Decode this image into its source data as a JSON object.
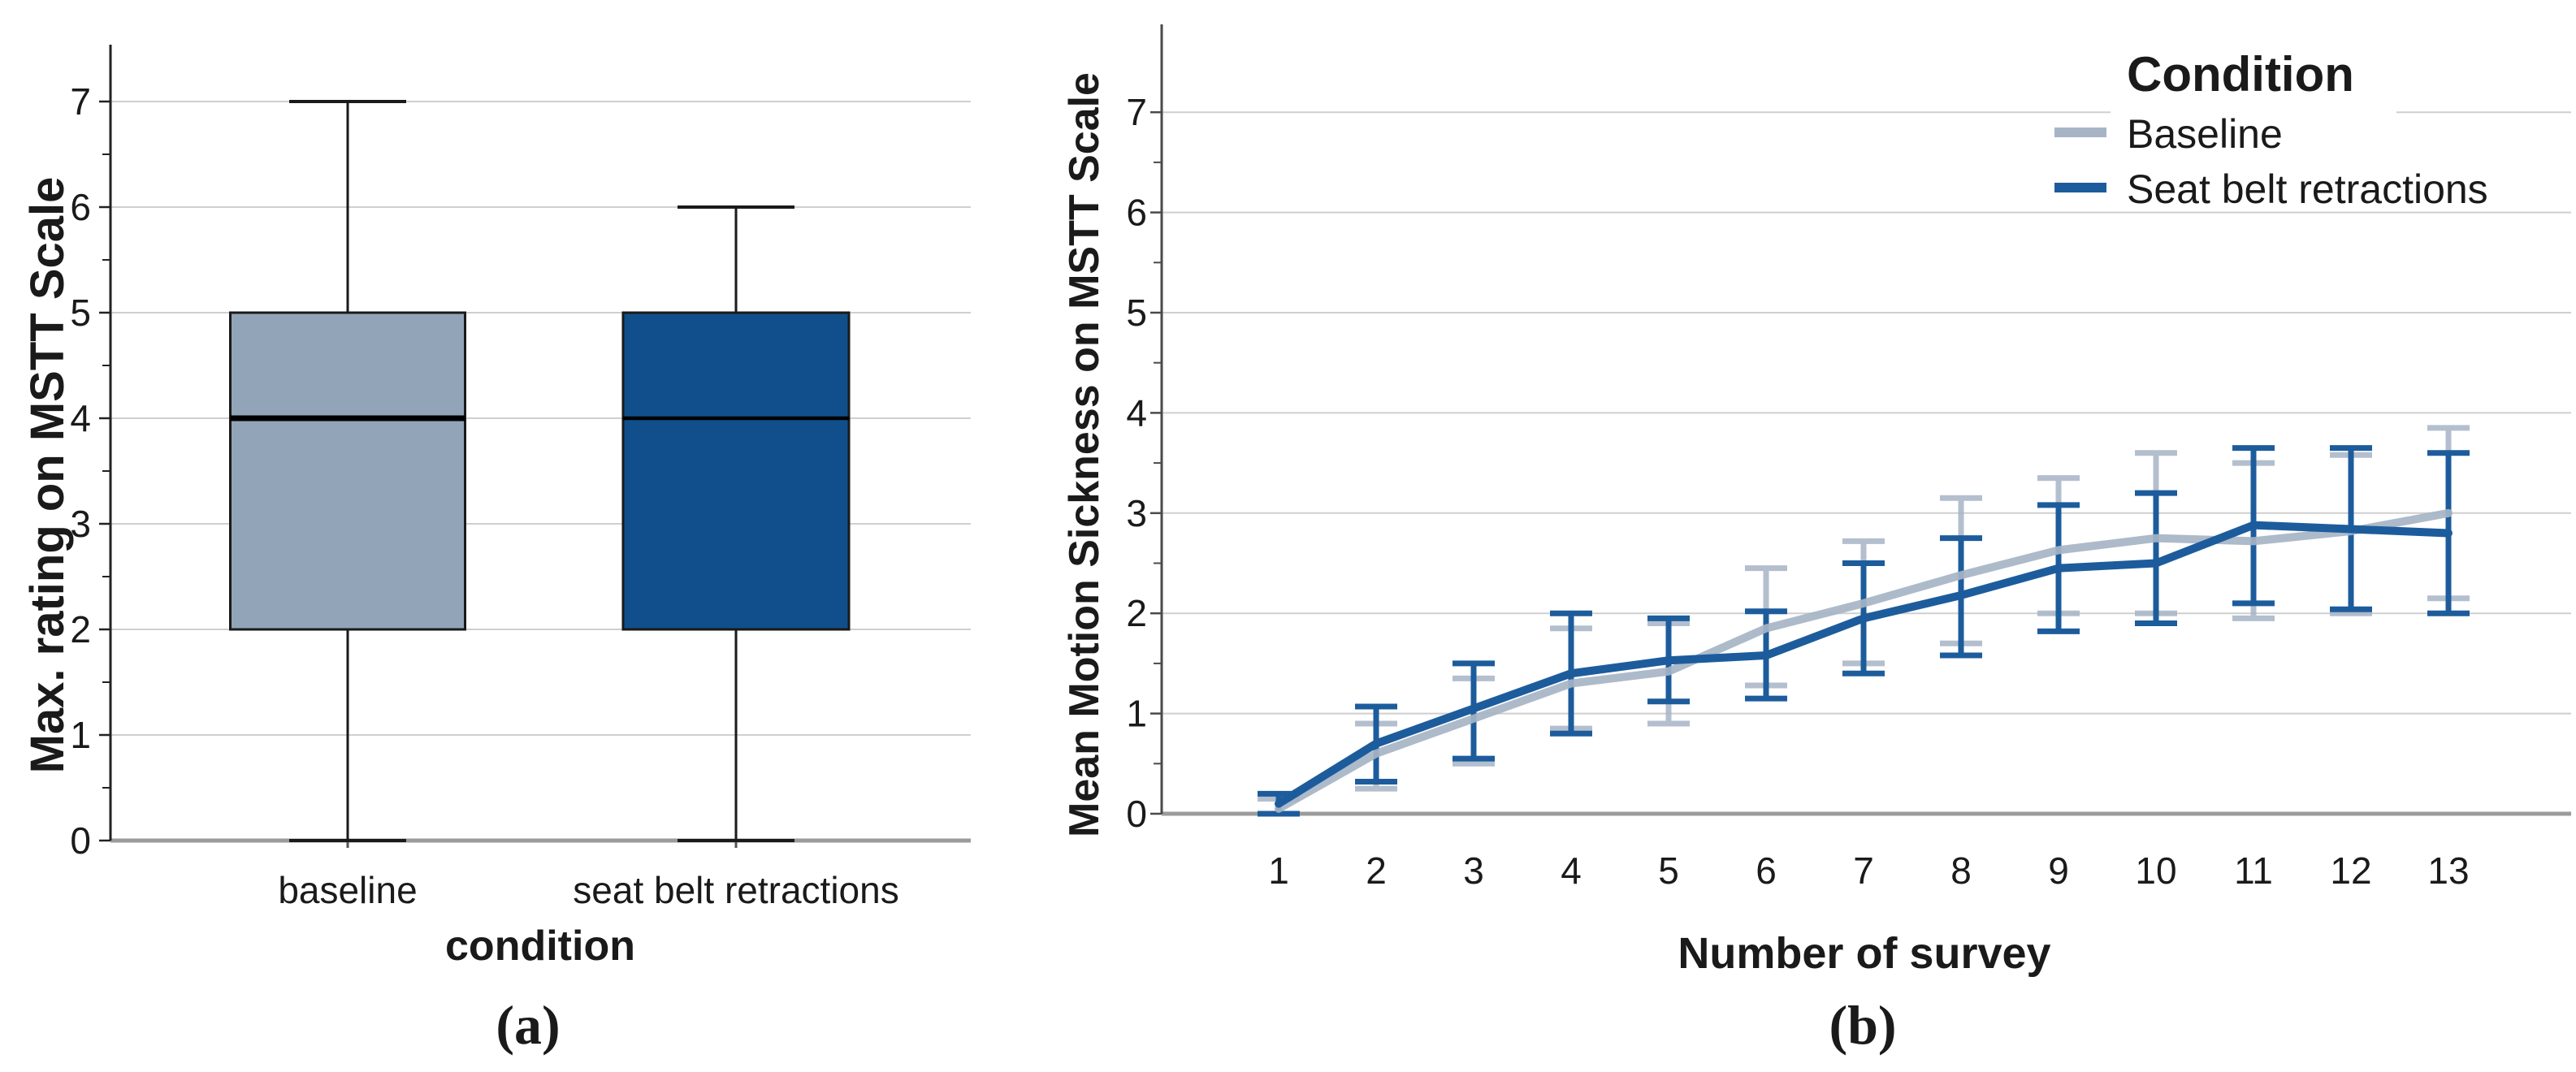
{
  "captions": {
    "a": "(a)",
    "b": "(b)"
  },
  "colors": {
    "baseline_fill": "#92a5b8",
    "seatbelt_fill": "#104f8b",
    "baseline_line": "#a6b4c6",
    "seatbelt_line": "#1d5c9c",
    "grid": "#cfcfcf",
    "axis_dark": "#222222",
    "axis_gray": "#9b9b9b",
    "text": "#1a1a1a"
  },
  "chart_data": [
    {
      "type": "box",
      "panel": "a",
      "ylabel": "Max. rating on  MSTT Scale",
      "xlabel": "condition",
      "ylim": [
        0,
        7
      ],
      "yticks": [
        0,
        1,
        2,
        3,
        4,
        5,
        6,
        7
      ],
      "grid": "horizontal",
      "categories": [
        "baseline",
        "seat belt retractions"
      ],
      "boxes": [
        {
          "label": "baseline",
          "whisker_low": 0,
          "q1": 2,
          "median": 4,
          "q3": 5,
          "whisker_high": 7,
          "fill": "#92a5b8",
          "median_weight": 7
        },
        {
          "label": "seat belt retractions",
          "whisker_low": 0,
          "q1": 2,
          "median": 4,
          "q3": 5,
          "whisker_high": 6,
          "fill": "#104f8b",
          "median_weight": 4.5
        }
      ]
    },
    {
      "type": "line",
      "panel": "b",
      "ylabel": "Mean Motion Sickness on MSTT Scale",
      "xlabel": "Number of survey",
      "ylim": [
        0,
        7
      ],
      "yticks": [
        0,
        1,
        2,
        3,
        4,
        5,
        6,
        7
      ],
      "x": [
        1,
        2,
        3,
        4,
        5,
        6,
        7,
        8,
        9,
        10,
        11,
        12,
        13
      ],
      "grid": "horizontal",
      "legend": {
        "title": "Condition",
        "position": "top-right"
      },
      "series": [
        {
          "name": "Baseline",
          "color": "#a6b4c6",
          "values": [
            0.05,
            0.6,
            0.95,
            1.3,
            1.42,
            1.85,
            2.1,
            2.38,
            2.63,
            2.75,
            2.72,
            2.82,
            3.0
          ],
          "err_low": [
            0.0,
            0.25,
            0.5,
            0.85,
            0.9,
            1.28,
            1.5,
            1.7,
            2.0,
            2.0,
            1.95,
            2.0,
            2.15
          ],
          "err_high": [
            0.15,
            0.9,
            1.35,
            1.85,
            1.9,
            2.45,
            2.72,
            3.15,
            3.35,
            3.6,
            3.5,
            3.58,
            3.85
          ]
        },
        {
          "name": "Seat belt retractions",
          "color": "#1d5c9c",
          "values": [
            0.1,
            0.7,
            1.05,
            1.4,
            1.53,
            1.58,
            1.95,
            2.18,
            2.45,
            2.5,
            2.88,
            2.84,
            2.8
          ],
          "err_low": [
            0.0,
            0.32,
            0.55,
            0.8,
            1.12,
            1.15,
            1.4,
            1.58,
            1.82,
            1.9,
            2.1,
            2.04,
            2.0
          ],
          "err_high": [
            0.2,
            1.07,
            1.5,
            2.0,
            1.95,
            2.02,
            2.5,
            2.75,
            3.08,
            3.2,
            3.65,
            3.65,
            3.6
          ]
        }
      ]
    }
  ]
}
